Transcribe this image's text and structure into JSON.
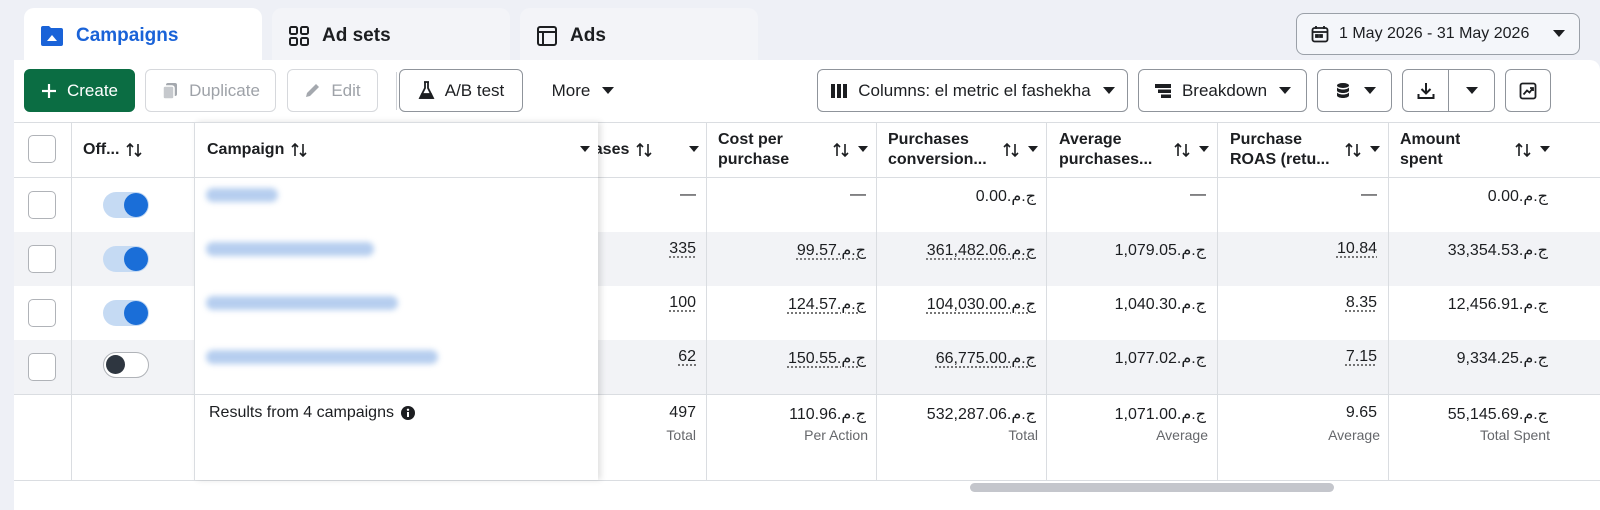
{
  "tabs": [
    {
      "label": "Campaigns",
      "icon": "folder-icon",
      "active": true
    },
    {
      "label": "Ad sets",
      "icon": "grid-icon",
      "active": false
    },
    {
      "label": "Ads",
      "icon": "ad-window-icon",
      "active": false
    }
  ],
  "date_range": {
    "label": "1 May 2026 - 31 May 2026",
    "icon": "calendar-icon"
  },
  "toolbar": {
    "create_label": "Create",
    "duplicate_label": "Duplicate",
    "edit_label": "Edit",
    "ab_test_label": "A/B test",
    "more_label": "More",
    "columns_label": "Columns: el metric el fashekha",
    "breakdown_label": "Breakdown"
  },
  "table": {
    "headers": {
      "off": "Off...",
      "campaign": "Campaign",
      "purchases": "hases",
      "cost_per_purchase": [
        "Cost per",
        "purchase"
      ],
      "purchases_conversion": [
        "Purchases",
        "conversion..."
      ],
      "average_purchases": [
        "Average",
        "purchases..."
      ],
      "purchase_roas": [
        "Purchase",
        "ROAS (retu..."
      ],
      "amount_spent": [
        "Amount",
        "spent"
      ]
    },
    "rows": [
      {
        "toggle": "on",
        "purchases": "—",
        "cost_per_purchase": "—",
        "purchases_conversion": "ج.م.0.00",
        "average_purchases": "—",
        "purchase_roas": "—",
        "amount_spent": "ج.م.0.00"
      },
      {
        "toggle": "on",
        "purchases": "335",
        "cost_per_purchase": "ج.م.99.57",
        "purchases_conversion": "ج.م.361,482.06",
        "average_purchases": "ج.م.1,079.05",
        "purchase_roas": "10.84",
        "amount_spent": "ج.م.33,354.53"
      },
      {
        "toggle": "on",
        "purchases": "100",
        "cost_per_purchase": "ج.م.124.57",
        "purchases_conversion": "ج.م.104,030.00",
        "average_purchases": "ج.م.1,040.30",
        "purchase_roas": "8.35",
        "amount_spent": "ج.م.12,456.91"
      },
      {
        "toggle": "off",
        "purchases": "62",
        "cost_per_purchase": "ج.م.150.55",
        "purchases_conversion": "ج.م.66,775.00",
        "average_purchases": "ج.م.1,077.02",
        "purchase_roas": "7.15",
        "amount_spent": "ج.م.9,334.25"
      }
    ],
    "summary": {
      "results_label": "Results from 4 campaigns",
      "purchases": "497",
      "purchases_sub": "Total",
      "cost_per_purchase": "ج.م.110.96",
      "cost_per_purchase_sub": "Per Action",
      "purchases_conversion": "ج.م.532,287.06",
      "purchases_conversion_sub": "Total",
      "average_purchases": "ج.م.1,071.00",
      "average_purchases_sub": "Average",
      "purchase_roas": "9.65",
      "purchase_roas_sub": "Average",
      "amount_spent": "ج.م.55,145.69",
      "amount_spent_sub": "Total Spent"
    }
  },
  "colors": {
    "accent": "#1a63d8",
    "create_button": "#0b6d43",
    "toggle_on": "#1a6ed8"
  }
}
